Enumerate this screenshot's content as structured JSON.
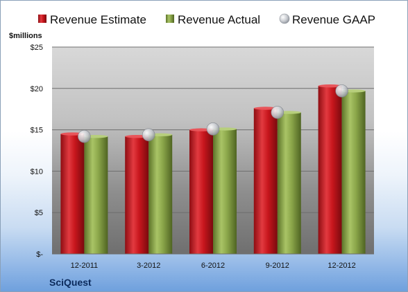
{
  "chart_data": {
    "type": "bar",
    "categories": [
      "12-2011",
      "3-2012",
      "6-2012",
      "9-2012",
      "12-2012"
    ],
    "series": [
      {
        "name": "Revenue Estimate",
        "values": [
          14.5,
          14.2,
          15.0,
          17.6,
          20.3
        ],
        "color": "#c0161c"
      },
      {
        "name": "Revenue Actual",
        "values": [
          14.2,
          14.4,
          15.1,
          17.1,
          19.7
        ],
        "color": "#8faa4a"
      },
      {
        "name": "Revenue GAAP",
        "values": [
          14.2,
          14.4,
          15.1,
          17.1,
          19.7
        ],
        "color": "#b8bcc4",
        "marker": "circle"
      }
    ],
    "ylabel": "$millions",
    "ylim": [
      0,
      25
    ],
    "yticks": [
      0,
      5,
      10,
      15,
      20,
      25
    ],
    "ytick_labels": [
      "$-",
      "$5",
      "$10",
      "$15",
      "$20",
      "$25"
    ],
    "grid": true,
    "legend_position": "top",
    "brand": "SciQuest"
  }
}
